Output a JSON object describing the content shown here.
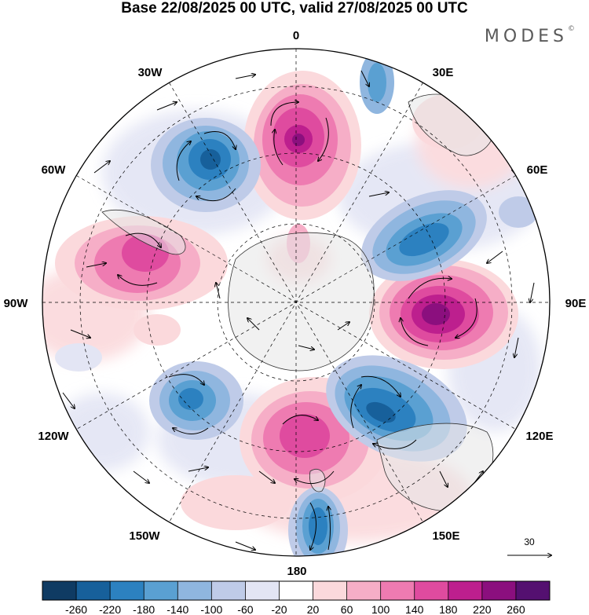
{
  "title": "Base 22/08/2025 00 UTC, valid 27/08/2025 00 UTC",
  "brand": {
    "name": "MODES",
    "mark": "©"
  },
  "longitude_labels": [
    "0",
    "30E",
    "60E",
    "90E",
    "120E",
    "150E",
    "180",
    "150W",
    "120W",
    "90W",
    "60W",
    "30W"
  ],
  "reference_vector": {
    "label": "30"
  },
  "colorbar": {
    "tick_labels": [
      "-260",
      "-220",
      "-180",
      "-140",
      "-100",
      "-60",
      "-20",
      "20",
      "60",
      "100",
      "140",
      "180",
      "220",
      "260"
    ],
    "colors": [
      "#0f3b63",
      "#17609b",
      "#2c81c0",
      "#5aa0d2",
      "#8fb6df",
      "#bfcbe8",
      "#e3e5f4",
      "#ffffff",
      "#fbd9dc",
      "#f6aec7",
      "#ee7bb1",
      "#df4b9f",
      "#bd1f8e",
      "#8b0f7e",
      "#541070"
    ]
  },
  "map": {
    "projection": "south polar stereographic",
    "anomaly_centers": [
      {
        "name": "positive anomaly near 0",
        "sign": "positive"
      },
      {
        "name": "positive anomaly near 90E",
        "sign": "positive"
      },
      {
        "name": "positive anomaly near 180",
        "sign": "positive"
      },
      {
        "name": "positive anomaly near 75W",
        "sign": "positive"
      },
      {
        "name": "negative anomaly near 40W",
        "sign": "negative"
      },
      {
        "name": "negative anomaly near 60E",
        "sign": "negative"
      },
      {
        "name": "negative anomaly near 125E",
        "sign": "negative"
      },
      {
        "name": "negative anomaly near 140W",
        "sign": "negative"
      },
      {
        "name": "negative anomaly near 170E",
        "sign": "negative"
      }
    ]
  }
}
